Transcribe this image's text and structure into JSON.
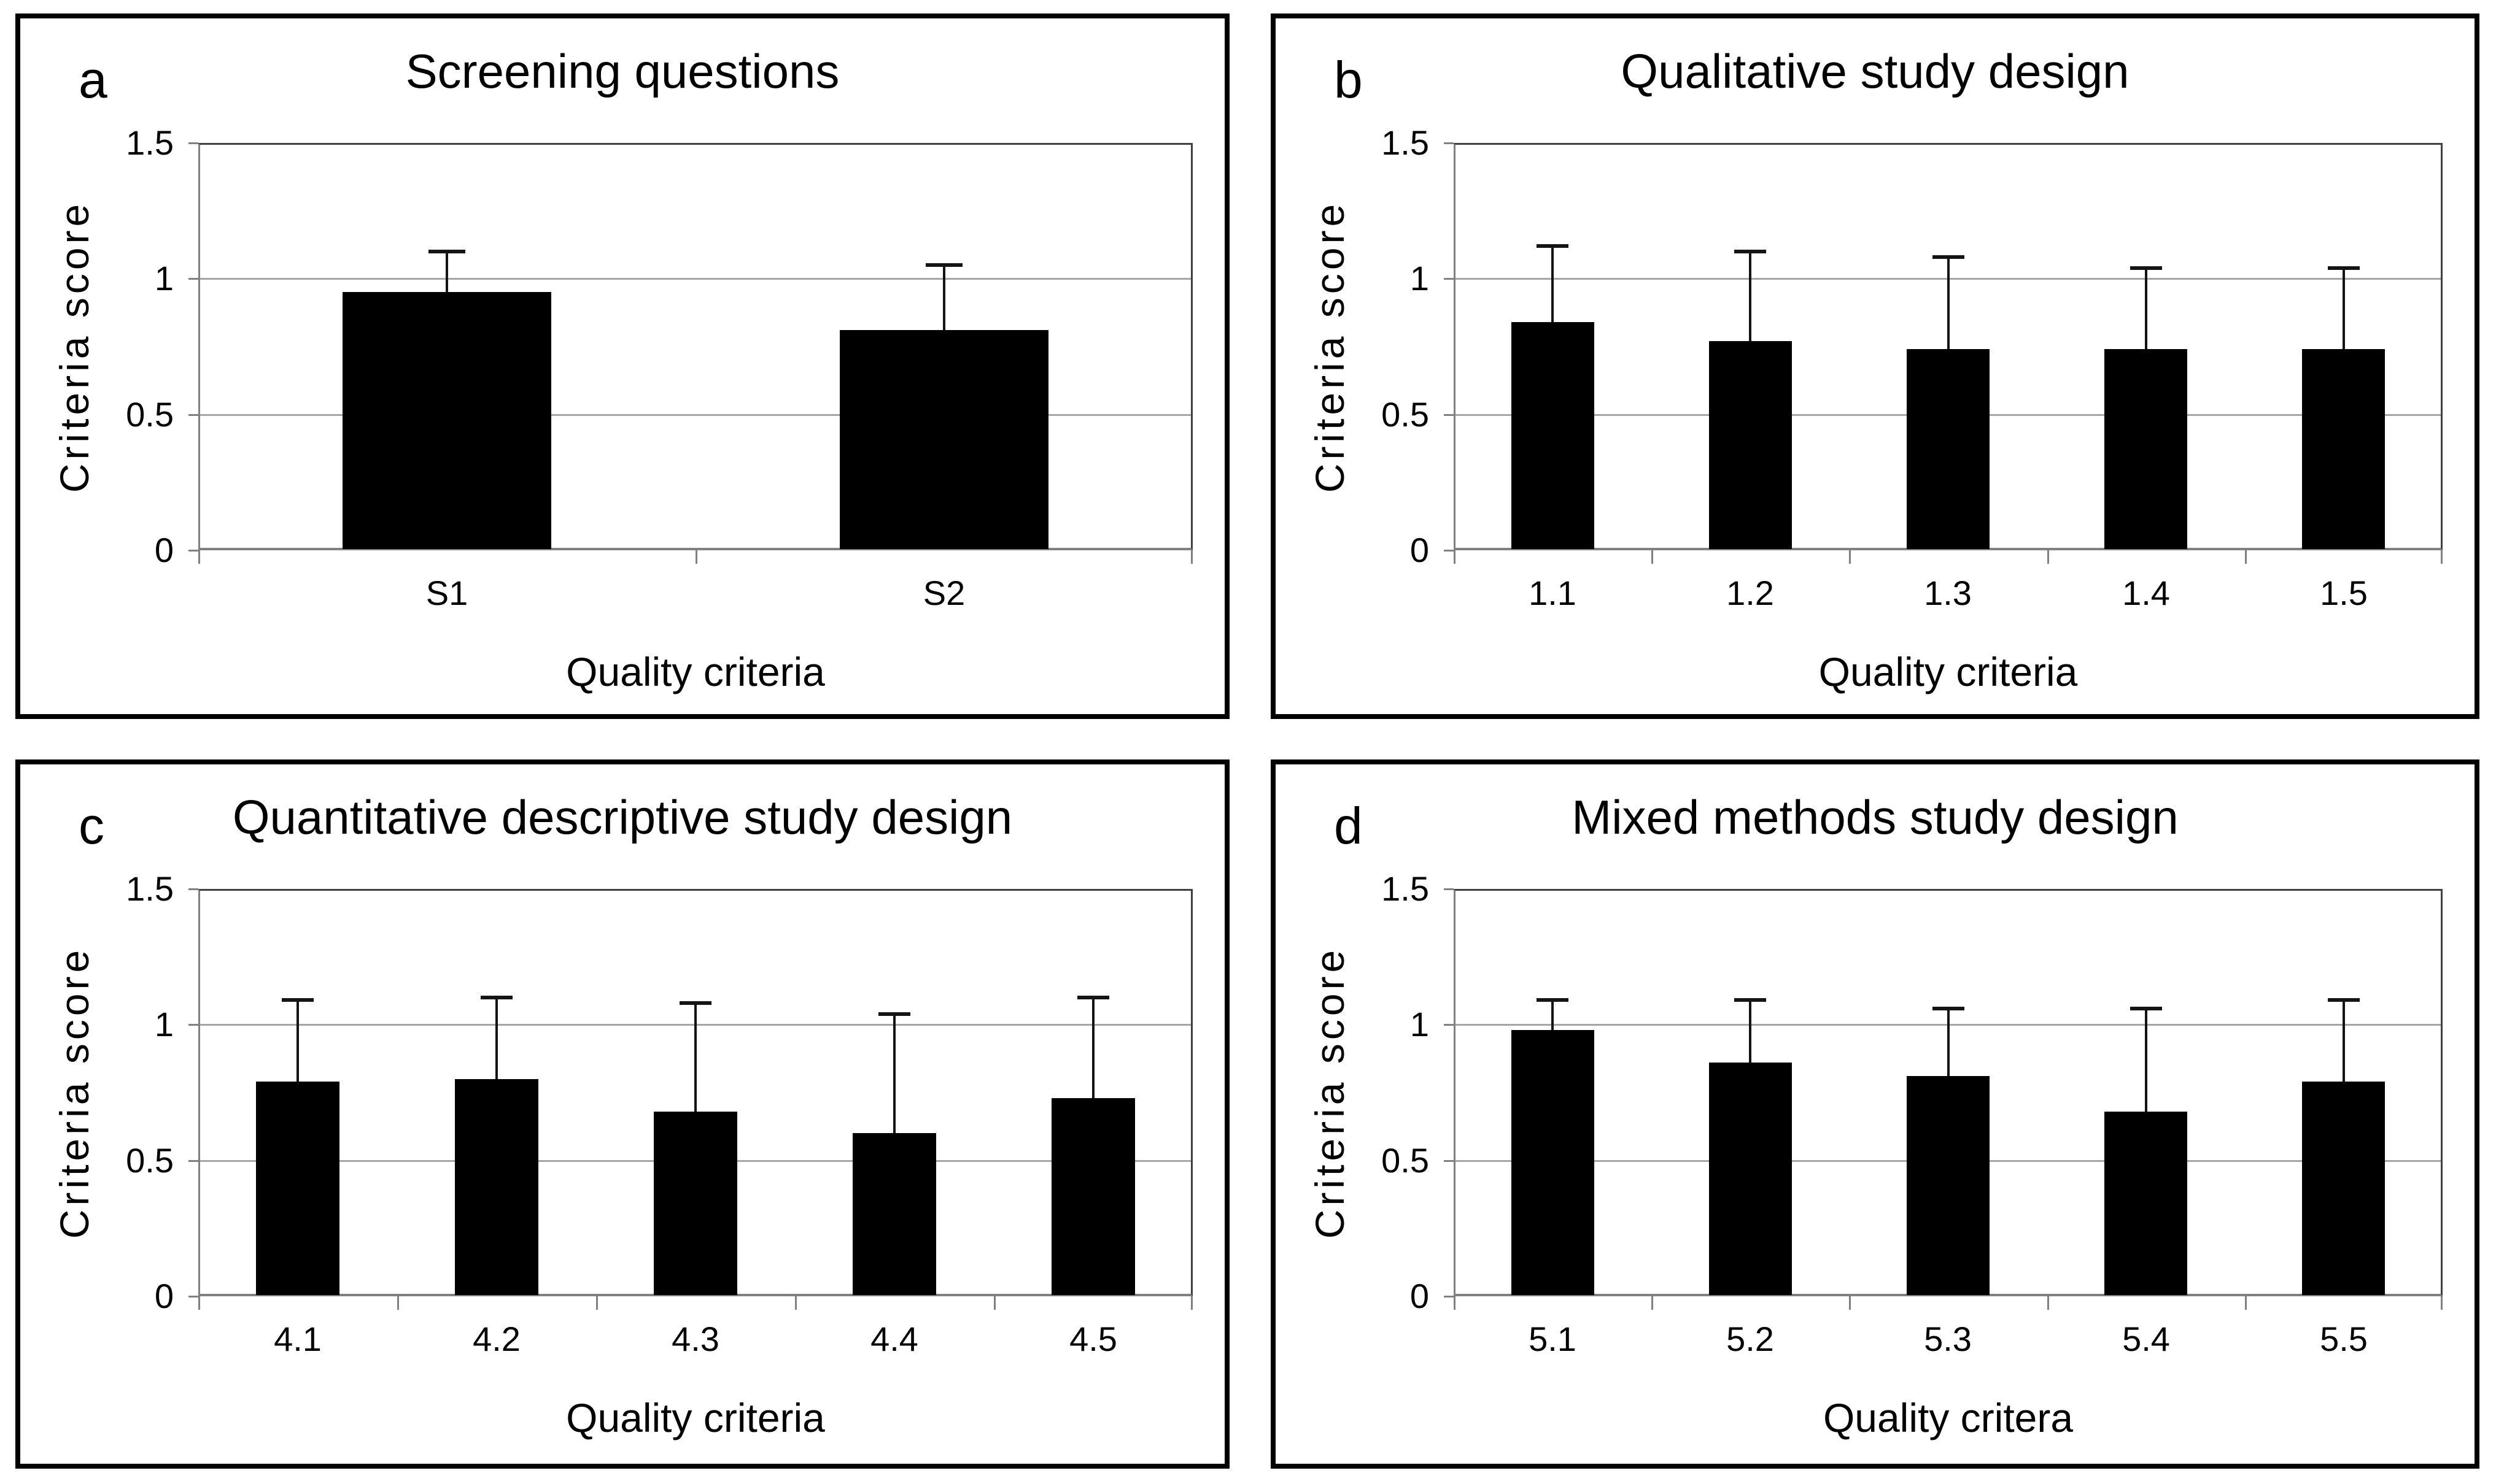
{
  "figure": {
    "background": "#ffffff",
    "bar_color": "#000000",
    "grid_color": "#a6a6a6",
    "axis_color": "#808080",
    "frame_color": "#404040",
    "text_color": "#000000"
  },
  "chart_data": [
    {
      "type": "bar",
      "panel_letter": "a",
      "title": "Screening questions",
      "xlabel": "Quality criteria",
      "ylabel": "Criteria score",
      "categories": [
        "S1",
        "S2"
      ],
      "values": [
        0.95,
        0.81
      ],
      "error_top": [
        1.1,
        1.05
      ],
      "ylim": [
        0,
        1.5
      ],
      "yticks": [
        0,
        0.5,
        1,
        1.5
      ],
      "ytick_labels": [
        "0",
        "0.5",
        "1",
        "1.5"
      ],
      "grid": true,
      "legend": false
    },
    {
      "type": "bar",
      "panel_letter": "b",
      "title": "Qualitative study design",
      "xlabel": "Quality criteria",
      "ylabel": "Criteria score",
      "categories": [
        "1.1",
        "1.2",
        "1.3",
        "1.4",
        "1.5"
      ],
      "values": [
        0.84,
        0.77,
        0.74,
        0.74,
        0.74
      ],
      "error_top": [
        1.12,
        1.1,
        1.08,
        1.04,
        1.04
      ],
      "ylim": [
        0,
        1.5
      ],
      "yticks": [
        0,
        0.5,
        1,
        1.5
      ],
      "ytick_labels": [
        "0",
        "0.5",
        "1",
        "1.5"
      ],
      "grid": true,
      "legend": false
    },
    {
      "type": "bar",
      "panel_letter": "c",
      "title": "Quantitative descriptive study design",
      "xlabel": "Quality criteria",
      "ylabel": "Criteria score",
      "categories": [
        "4.1",
        "4.2",
        "4.3",
        "4.4",
        "4.5"
      ],
      "values": [
        0.79,
        0.8,
        0.68,
        0.6,
        0.73
      ],
      "error_top": [
        1.09,
        1.1,
        1.08,
        1.04,
        1.1
      ],
      "ylim": [
        0,
        1.5
      ],
      "yticks": [
        0,
        0.5,
        1,
        1.5
      ],
      "ytick_labels": [
        "0",
        "0.5",
        "1",
        "1.5"
      ],
      "grid": true,
      "legend": false
    },
    {
      "type": "bar",
      "panel_letter": "d",
      "title": "Mixed methods study design",
      "xlabel": "Quality critera",
      "ylabel": "Criteria score",
      "categories": [
        "5.1",
        "5.2",
        "5.3",
        "5.4",
        "5.5"
      ],
      "values": [
        0.98,
        0.86,
        0.81,
        0.68,
        0.79
      ],
      "error_top": [
        1.09,
        1.09,
        1.06,
        1.06,
        1.09
      ],
      "ylim": [
        0,
        1.5
      ],
      "yticks": [
        0,
        0.5,
        1,
        1.5
      ],
      "ytick_labels": [
        "0",
        "0.5",
        "1",
        "1.5"
      ],
      "grid": true,
      "legend": false
    }
  ]
}
